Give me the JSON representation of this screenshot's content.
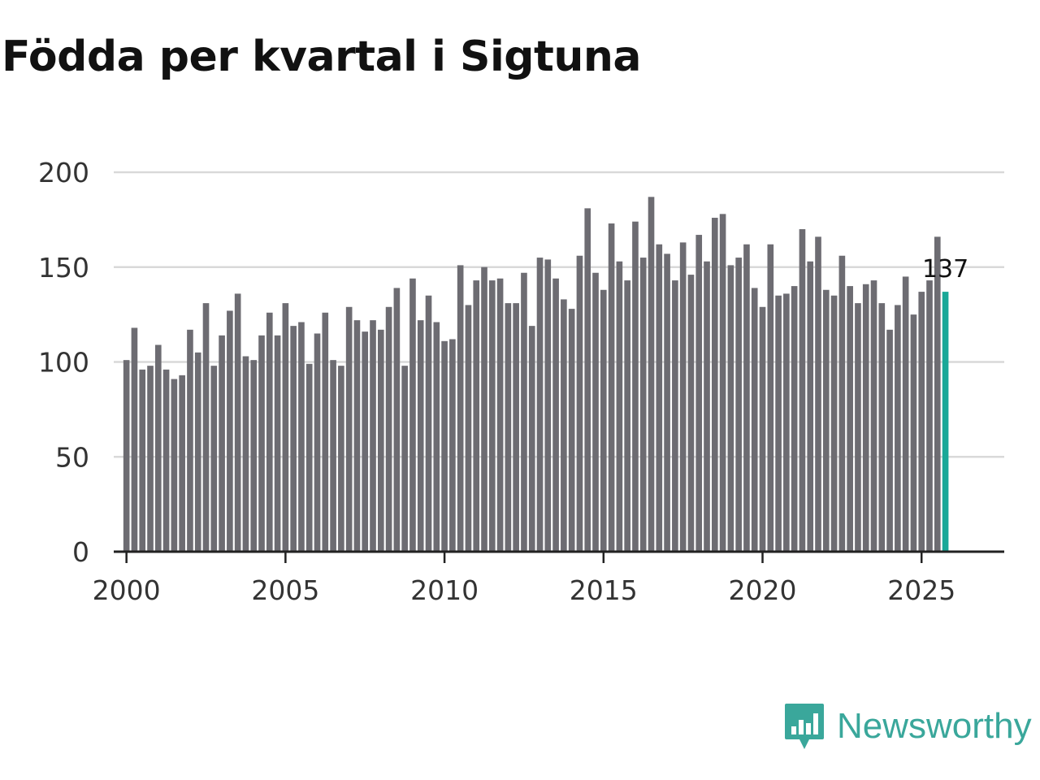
{
  "title": "Födda per kvartal i Sigtuna",
  "brand": {
    "name": "Newsworthy",
    "icon": "newsworthy-logo-icon",
    "color": "#3aa79b"
  },
  "colors": {
    "bar": "#6d6c72",
    "highlight": "#1aa898",
    "grid": "#d9d9d9",
    "axis": "#222222"
  },
  "chart_data": {
    "type": "bar",
    "title": "Födda per kvartal i Sigtuna",
    "xlabel": "",
    "ylabel": "",
    "ylim": [
      0,
      200
    ],
    "yticks": [
      0,
      50,
      100,
      150,
      200
    ],
    "xlim": [
      1999.6,
      2027.6
    ],
    "xticks": [
      2000,
      2005,
      2010,
      2015,
      2020,
      2025
    ],
    "xtick_labels": [
      "2000",
      "2005",
      "2010",
      "2015",
      "2020",
      "2025"
    ],
    "grid": true,
    "first_period": "2000 Q1",
    "values": [
      101,
      118,
      96,
      98,
      109,
      96,
      91,
      93,
      117,
      105,
      131,
      98,
      114,
      127,
      136,
      103,
      101,
      114,
      126,
      114,
      131,
      119,
      121,
      99,
      115,
      126,
      101,
      98,
      129,
      122,
      116,
      122,
      117,
      129,
      139,
      98,
      144,
      122,
      135,
      121,
      111,
      112,
      151,
      130,
      143,
      150,
      143,
      144,
      131,
      131,
      147,
      119,
      155,
      154,
      144,
      133,
      128,
      156,
      181,
      147,
      138,
      173,
      153,
      143,
      174,
      155,
      187,
      162,
      157,
      143,
      163,
      146,
      167,
      153,
      176,
      178,
      151,
      155,
      162,
      139,
      129,
      162,
      135,
      136,
      140,
      170,
      153,
      166,
      138,
      135,
      156,
      140,
      131,
      141,
      143,
      131,
      117,
      130,
      145,
      125,
      137,
      143,
      166,
      137
    ],
    "highlight_index": 103,
    "annotation": {
      "label": "137",
      "index": 103
    }
  }
}
